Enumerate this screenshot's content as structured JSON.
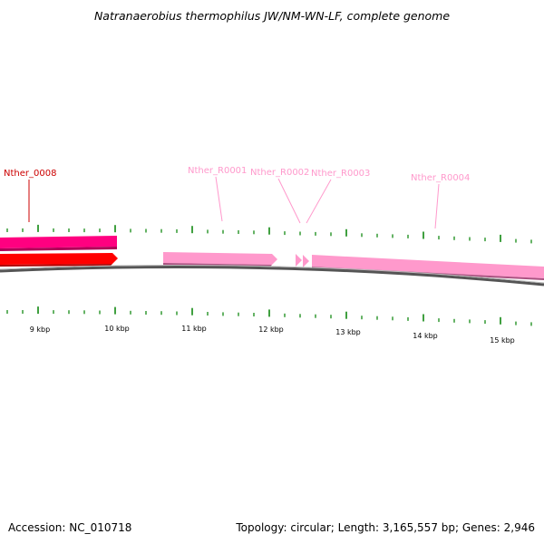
{
  "title": "Natranaerobius thermophilus JW/NM-WN-LF, complete genome",
  "footer": {
    "accession": "Accession: NC_010718",
    "summary": "Topology: circular; Length: 3,165,557 bp; Genes: 2,946"
  },
  "colors": {
    "rna_gene": "#ff99cc",
    "forward_cds": "#ff0080",
    "reverse_cds": "#ff0000",
    "tick": "#008000",
    "backbone": "#777777",
    "label_red": "#cc0000"
  },
  "gene_labels": [
    {
      "text": "Nther_0008"
    },
    {
      "text": "Nther_R0001"
    },
    {
      "text": "Nther_R0002"
    },
    {
      "text": "Nther_R0003"
    },
    {
      "text": "Nther_R0004"
    }
  ],
  "kbp_labels": [
    "9 kbp",
    "10 kbp",
    "11 kbp",
    "12 kbp",
    "13 kbp",
    "14 kbp",
    "15 kbp"
  ]
}
